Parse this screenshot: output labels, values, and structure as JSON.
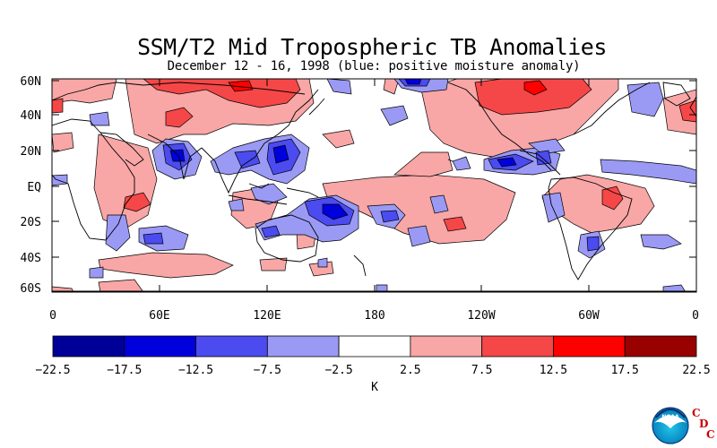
{
  "title": "SSM/T2 Mid Tropospheric TB Anomalies",
  "subtitle": "December 12 - 16, 1998 (blue: positive moisture anomaly)",
  "latitude_labels": [
    "60N",
    "40N",
    "20N",
    "EQ",
    "20S",
    "40S",
    "60S"
  ],
  "longitude_labels": [
    "0",
    "60E",
    "120E",
    "180",
    "120W",
    "60W",
    "0"
  ],
  "colorbar": {
    "unit_label": "K",
    "tick_labels": [
      "−22.5",
      "−17.5",
      "−12.5",
      "−7.5",
      "−2.5",
      "2.5",
      "7.5",
      "12.5",
      "17.5",
      "22.5"
    ],
    "colors": [
      "#000099",
      "#0000dd",
      "#4b4bf0",
      "#9a9af5",
      "#ffffff",
      "#f8a6a6",
      "#f54747",
      "#fe0000",
      "#990000"
    ]
  },
  "logo": {
    "agency": "NOAA",
    "cdc_letters": [
      "C",
      "D",
      "C"
    ]
  }
}
